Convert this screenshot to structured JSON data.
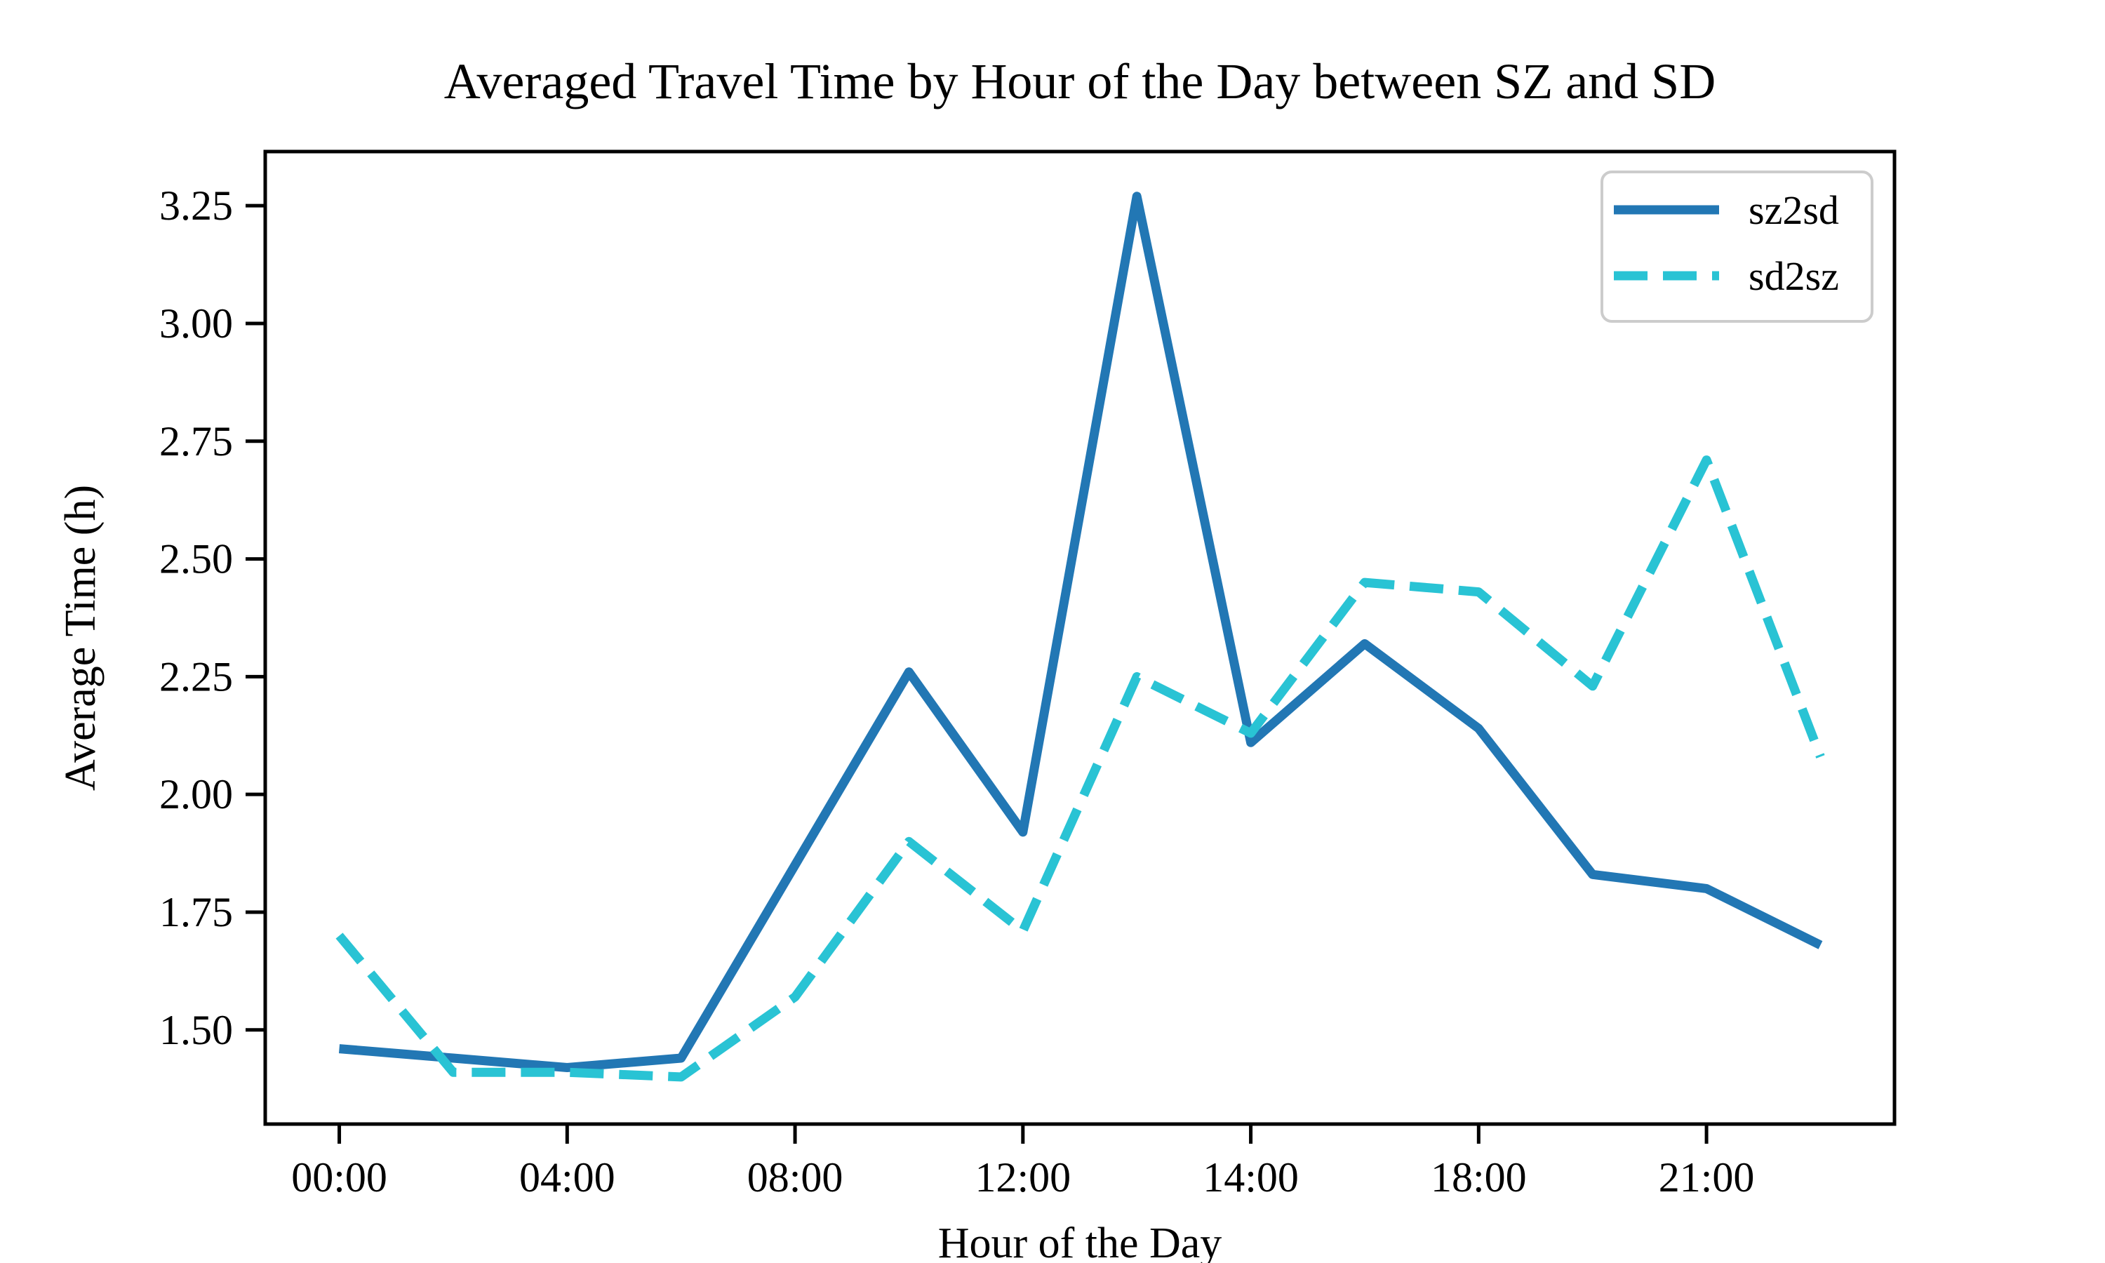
{
  "chart_data": {
    "type": "line",
    "title": "Averaged Travel Time by Hour of the Day between SZ and SD",
    "xlabel": "Hour of the Day",
    "ylabel": "Average Time (h)",
    "grid": false,
    "legend_position": "upper right",
    "n_points": 14,
    "x_tick_indices": [
      0,
      2,
      4,
      6,
      8,
      10,
      12
    ],
    "x_tick_labels": [
      "00:00",
      "04:00",
      "08:00",
      "12:00",
      "14:00",
      "18:00",
      "21:00"
    ],
    "y_ticks": [
      1.5,
      1.75,
      2.0,
      2.25,
      2.5,
      2.75,
      3.0,
      3.25
    ],
    "xlim": [
      -0.65,
      13.65
    ],
    "ylim": [
      1.3,
      3.365
    ],
    "series": [
      {
        "name": "sz2sd",
        "style": "solid",
        "color": "#2277b4",
        "values": [
          1.46,
          1.44,
          1.42,
          1.44,
          1.85,
          2.26,
          1.92,
          3.27,
          2.11,
          2.32,
          2.14,
          1.83,
          1.8,
          1.68
        ]
      },
      {
        "name": "sd2sz",
        "style": "dashed",
        "color": "#29c3d4",
        "values": [
          1.7,
          1.41,
          1.41,
          1.4,
          1.57,
          1.9,
          1.71,
          2.25,
          2.13,
          2.45,
          2.43,
          2.23,
          2.71,
          2.08
        ]
      }
    ]
  }
}
